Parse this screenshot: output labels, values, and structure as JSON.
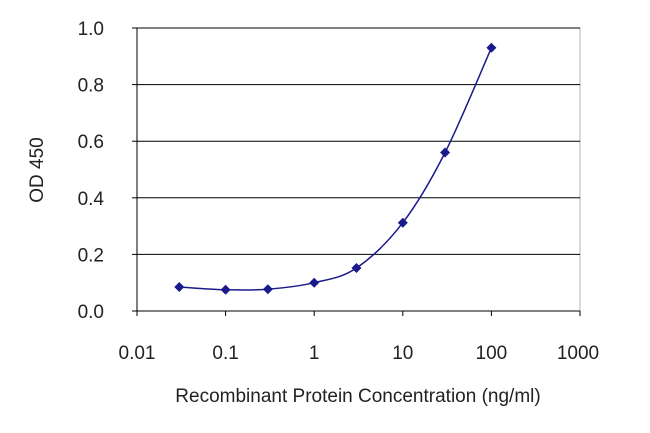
{
  "chart_data": {
    "type": "line",
    "xlabel": "Recombinant Protein Concentration (ng/ml)",
    "ylabel": "OD 450",
    "x_scale": "log",
    "xlim": [
      0.01,
      1000
    ],
    "ylim": [
      0.0,
      1.0
    ],
    "x_ticks": [
      "0.01",
      "0.1",
      "1",
      "10",
      "100",
      "1000"
    ],
    "y_ticks": [
      "0.0",
      "0.2",
      "0.4",
      "0.6",
      "0.8",
      "1.0"
    ],
    "grid": "horizontal",
    "series": [
      {
        "x": [
          0.03,
          0.1,
          0.3,
          1,
          3,
          10,
          30,
          100
        ],
        "values": [
          0.085,
          0.075,
          0.077,
          0.1,
          0.152,
          0.312,
          0.56,
          0.93
        ]
      }
    ],
    "colors": {
      "series": "#1a1a8c",
      "grid": "#000000",
      "axis": "#000000"
    }
  }
}
